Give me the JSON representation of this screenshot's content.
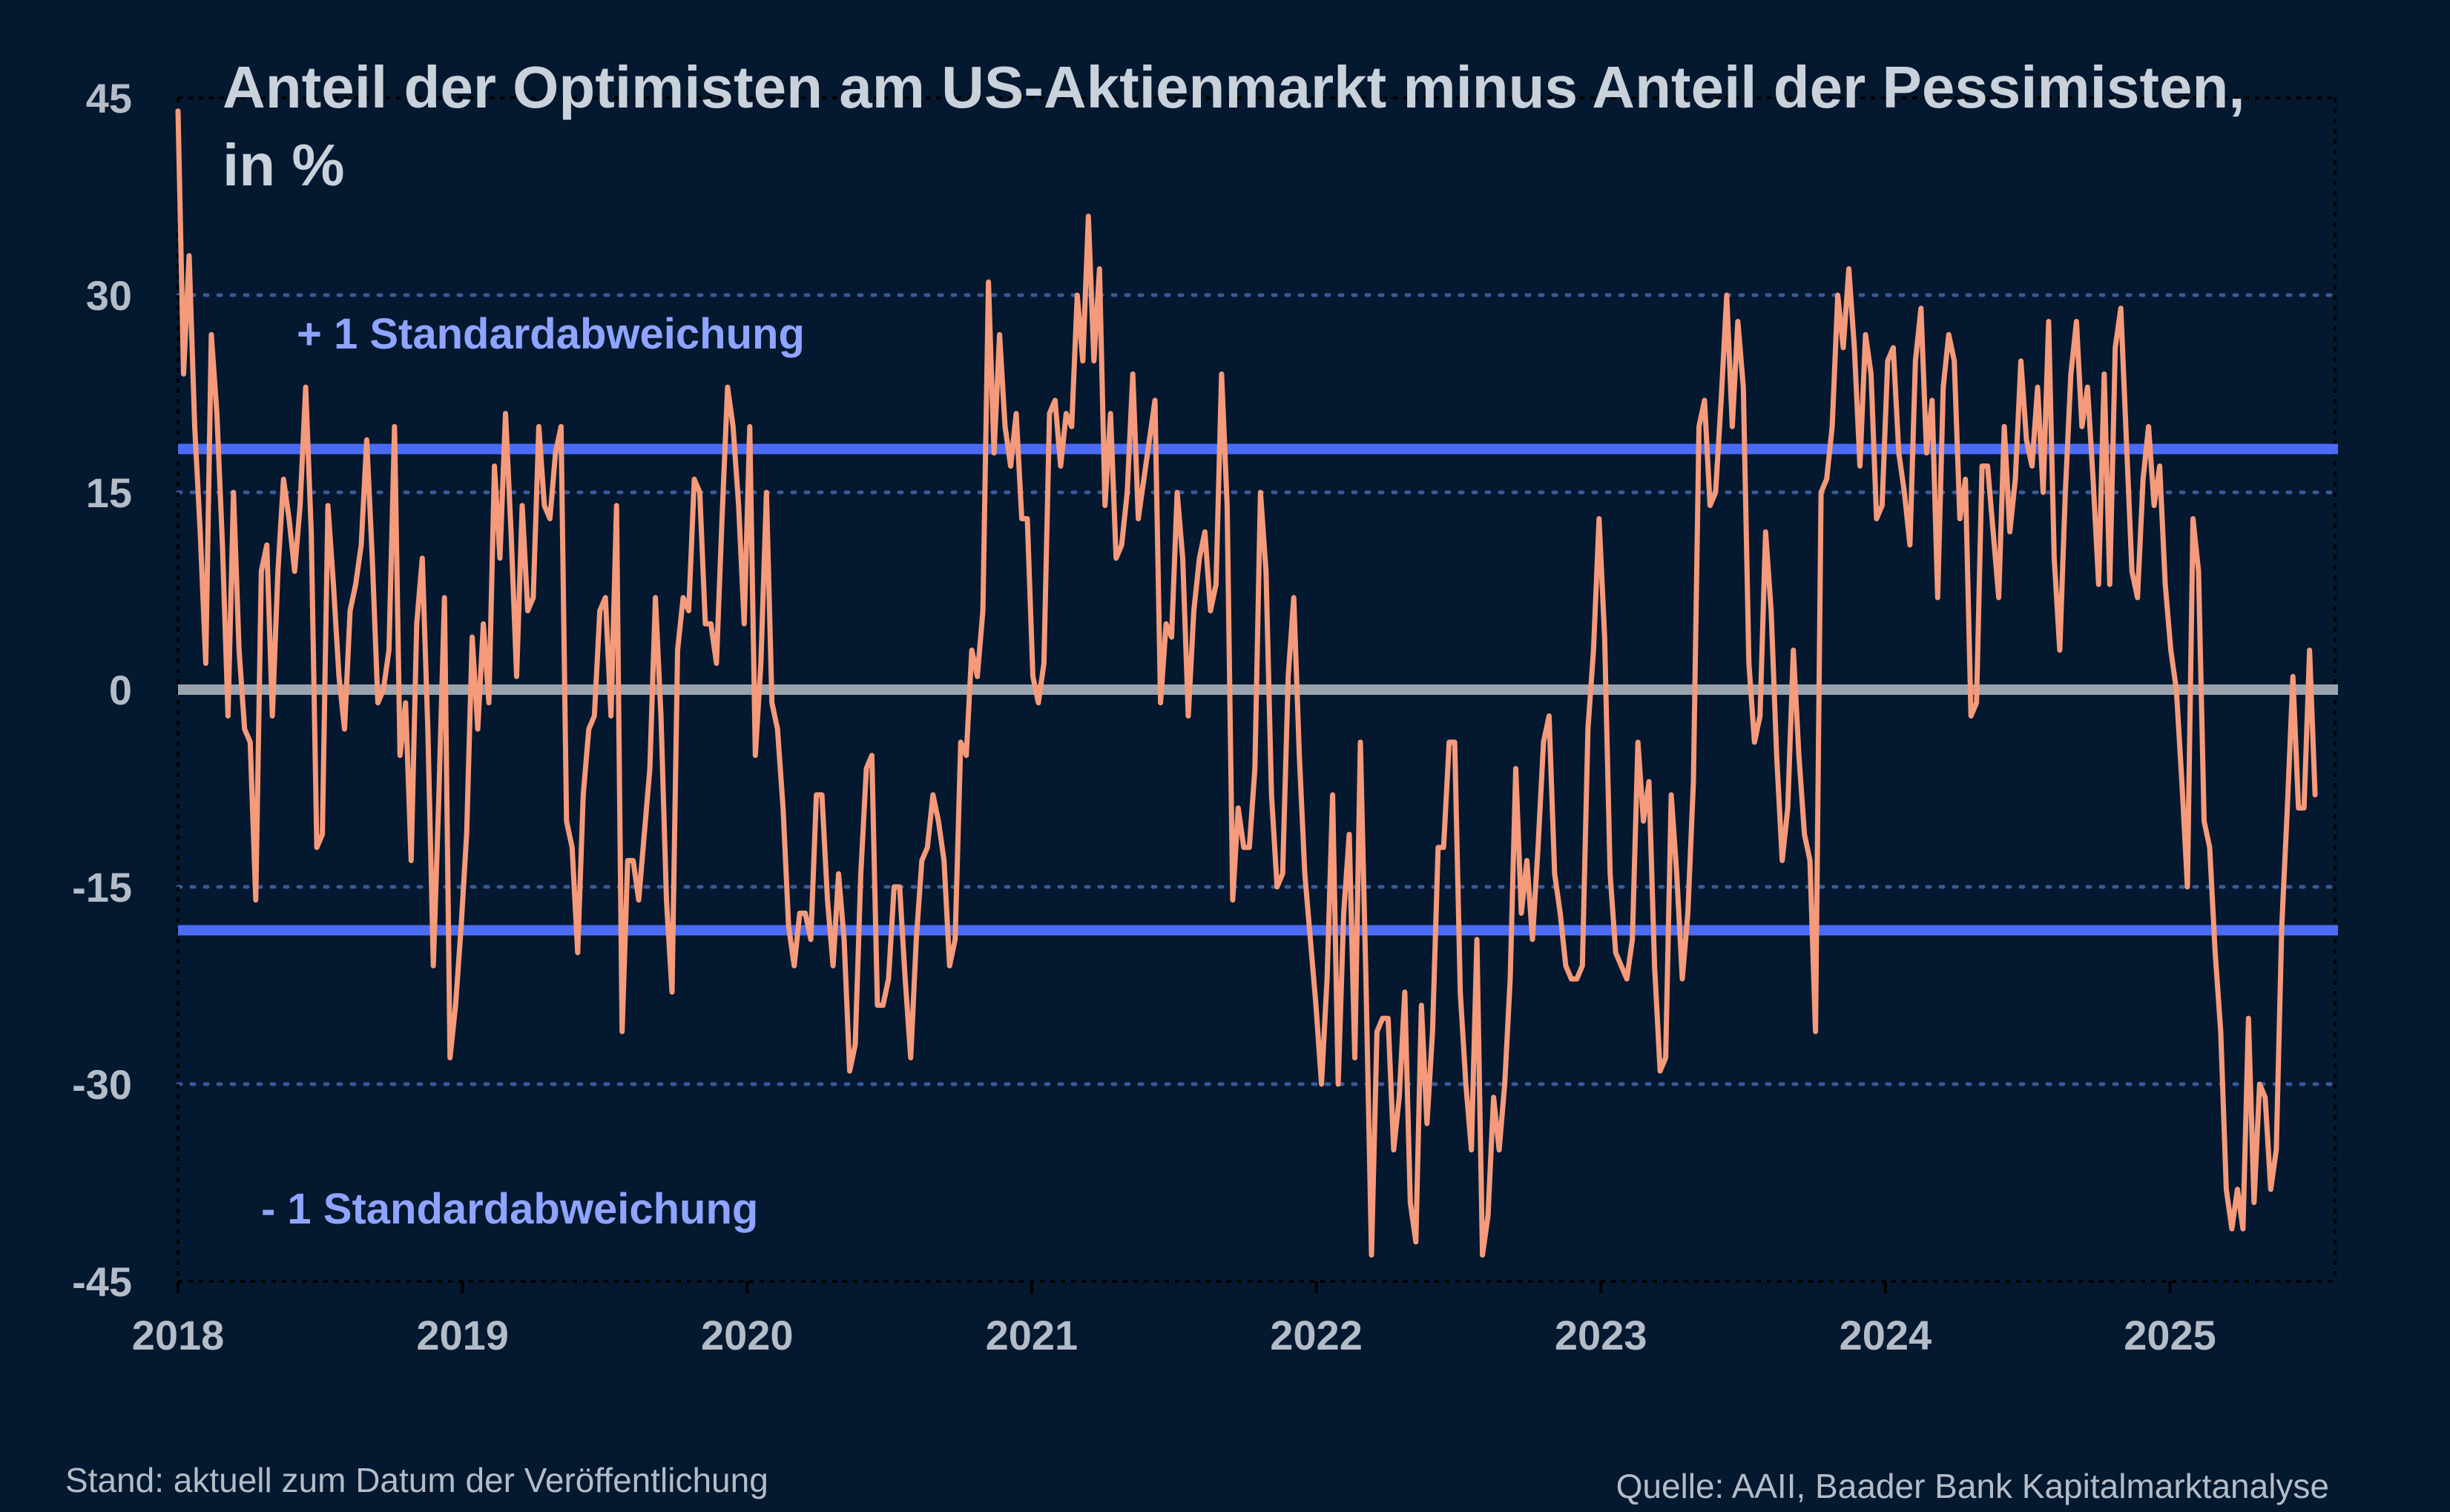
{
  "chart_data": {
    "type": "line",
    "title": "Anteil der Optimisten am US-Aktienmarkt minus Anteil der Pessimisten,",
    "title_line2": "in %",
    "x_start_year": 2018,
    "x_end_year": 2025.58,
    "x_tick_labels": [
      "2018",
      "2019",
      "2020",
      "2021",
      "2022",
      "2023",
      "2024",
      "2025"
    ],
    "y_ticks": [
      45,
      30,
      15,
      0,
      -15,
      -30,
      -45
    ],
    "y_tick_labels": [
      "45",
      "30",
      "15",
      "0",
      "-15",
      "-30",
      "-45"
    ],
    "ylim": [
      -45,
      45
    ],
    "grid": "horizontal dotted",
    "reference_lines": [
      {
        "label": "+ 1 Standardabweichung",
        "value": 18.3,
        "color": "#4a6cf5"
      },
      {
        "label": "- 1 Standardabweichung",
        "value": -18.3,
        "color": "#4a6cf5"
      },
      {
        "label": "",
        "value": 0,
        "color": "#9aa3ad"
      }
    ],
    "series": [
      {
        "color": "#f59a7a",
        "values": [
          44,
          24,
          33,
          20,
          12,
          2,
          27,
          21,
          11,
          -2,
          15,
          3,
          -3,
          -4,
          -16,
          9,
          11,
          -2,
          9,
          16,
          13,
          9,
          14,
          23,
          12,
          -12,
          -11,
          14,
          8,
          1,
          -3,
          6,
          8,
          11,
          19,
          10,
          -1,
          0,
          3,
          20,
          -5,
          -1,
          -13,
          5,
          10,
          -3,
          -21,
          -8,
          7,
          -28,
          -24,
          -18,
          -11,
          4,
          -3,
          5,
          -1,
          17,
          10,
          21,
          12,
          1,
          14,
          6,
          7,
          20,
          14,
          13,
          18,
          20,
          -10,
          -12,
          -20,
          -8,
          -3,
          -2,
          6,
          7,
          -2,
          14,
          -26,
          -13,
          -13,
          -16,
          -11,
          -6,
          7,
          -2,
          -16,
          -23,
          3,
          7,
          6,
          16,
          15,
          5,
          5,
          2,
          13,
          23,
          20,
          14,
          5,
          20,
          -5,
          2,
          15,
          -1,
          -3,
          -9,
          -18,
          -21,
          -17,
          -17,
          -19,
          -8,
          -8,
          -16,
          -21,
          -14,
          -19,
          -29,
          -27,
          -14,
          -6,
          -5,
          -24,
          -24,
          -22,
          -15,
          -15,
          -22,
          -28,
          -19,
          -13,
          -12,
          -8,
          -10,
          -13,
          -21,
          -19,
          -4,
          -5,
          3,
          1,
          6,
          31,
          18,
          27,
          20,
          17,
          21,
          13,
          13,
          1,
          -1,
          2,
          21,
          22,
          17,
          21,
          20,
          30,
          25,
          36,
          25,
          32,
          14,
          21,
          10,
          11,
          15,
          24,
          13,
          16,
          19,
          22,
          -1,
          5,
          4,
          15,
          10,
          -2,
          6,
          10,
          12,
          6,
          8,
          24,
          14,
          -16,
          -9,
          -12,
          -12,
          -6,
          15,
          9,
          -8,
          -15,
          -14,
          1,
          7,
          -5,
          -14,
          -19,
          -24,
          -30,
          -22,
          -8,
          -30,
          -17,
          -11,
          -28,
          -4,
          -22,
          -43,
          -26,
          -25,
          -25,
          -35,
          -31,
          -23,
          -39,
          -42,
          -24,
          -33,
          -26,
          -12,
          -12,
          -4,
          -4,
          -23,
          -30,
          -35,
          -19,
          -43,
          -40,
          -31,
          -35,
          -30,
          -22,
          -6,
          -17,
          -13,
          -19,
          -12,
          -4,
          -2,
          -14,
          -17,
          -21,
          -22,
          -22,
          -21,
          -3,
          3,
          13,
          4,
          -14,
          -20,
          -21,
          -22,
          -19,
          -4,
          -10,
          -7,
          -21,
          -29,
          -28,
          -8,
          -14,
          -22,
          -17,
          -7,
          20,
          22,
          14,
          15,
          22,
          30,
          20,
          28,
          23,
          2,
          -4,
          -2,
          12,
          6,
          -5,
          -13,
          -9,
          3,
          -5,
          -11,
          -13,
          -26,
          15,
          16,
          20,
          30,
          26,
          32,
          26,
          17,
          27,
          24,
          13,
          14,
          25,
          26,
          18,
          15,
          11,
          25,
          29,
          18,
          22,
          7,
          23,
          27,
          25,
          13,
          16,
          -2,
          -1,
          17,
          17,
          12,
          7,
          20,
          12,
          16,
          25,
          19,
          17,
          23,
          15,
          28,
          10,
          3,
          15,
          24,
          28,
          20,
          23,
          16,
          8,
          24,
          8,
          26,
          29,
          19,
          9,
          7,
          16,
          20,
          14,
          17,
          8,
          3,
          0,
          -7,
          -15,
          13,
          9,
          -10,
          -12,
          -20,
          -26,
          -38,
          -41,
          -38,
          -41,
          -25,
          -39,
          -30,
          -31,
          -38,
          -35,
          -18,
          -9,
          1,
          -9,
          -9,
          3,
          -8
        ]
      }
    ],
    "source_left": "Stand: aktuell zum Datum der Veröffentlichung",
    "source_right": "Quelle: AAII, Baader Bank Kapitalmarktanalyse"
  },
  "colors": {
    "background": "#041830",
    "line": "#f59a7a",
    "std_lines": "#4a6cf5",
    "zero_line": "#9aa3ad",
    "grid": "#3a5a9a",
    "text": "#b4bcc7"
  }
}
